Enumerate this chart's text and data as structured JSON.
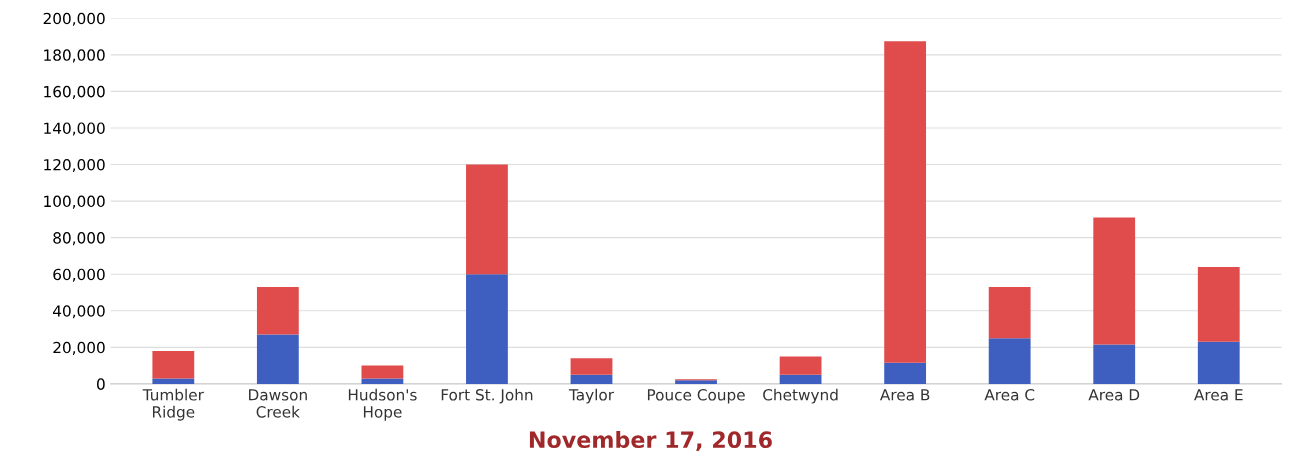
{
  "chart_data": {
    "type": "bar",
    "stacked": true,
    "categories": [
      "Tumbler\nRidge",
      "Dawson\nCreek",
      "Hudson's\nHope",
      "Fort St. John",
      "Taylor",
      "Pouce Coupe",
      "Chetwynd",
      "Area B",
      "Area C",
      "Area D",
      "Area E"
    ],
    "series": [
      {
        "color": "#3f5fc0",
        "values": [
          3000,
          27000,
          3000,
          60000,
          5000,
          2000,
          5000,
          11500,
          25000,
          21500,
          23000
        ]
      },
      {
        "color": "#e04c4c",
        "values": [
          15000,
          26000,
          7000,
          60000,
          9000,
          500,
          10000,
          176000,
          28000,
          69500,
          41000
        ]
      }
    ],
    "ylim": [
      0,
      200000
    ],
    "yticks": [
      {
        "value": 0,
        "label": "0"
      },
      {
        "value": 20000,
        "label": "20,000"
      },
      {
        "value": 40000,
        "label": "40,000"
      },
      {
        "value": 60000,
        "label": "60,000"
      },
      {
        "value": 80000,
        "label": "80,000"
      },
      {
        "value": 100000,
        "label": "100,000"
      },
      {
        "value": 120000,
        "label": "120,000"
      },
      {
        "value": 140000,
        "label": "140,000"
      },
      {
        "value": 160000,
        "label": "160,000"
      },
      {
        "value": 180000,
        "label": "180,000"
      },
      {
        "value": 200000,
        "label": "200,000"
      }
    ],
    "grid": "y",
    "annotations": [
      "November 17, 2016"
    ]
  }
}
